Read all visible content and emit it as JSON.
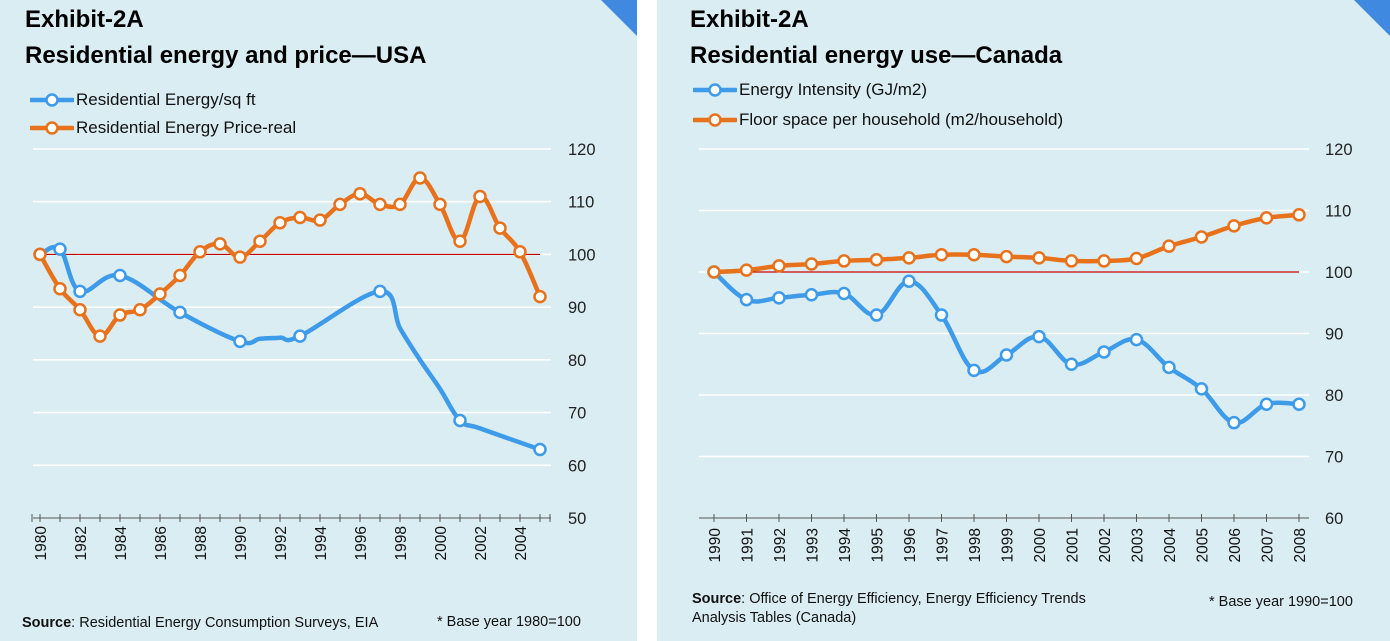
{
  "panels": [
    {
      "exhibit": "Exhibit-2A",
      "title": "Residential energy and price—USA",
      "legend": [
        "Residential Energy/sq ft",
        "Residential Energy Price-real"
      ],
      "source_label": "Source",
      "source_text": ": Residential Energy Consumption Surveys, EIA",
      "note": "* Base year 1980=100"
    },
    {
      "exhibit": "Exhibit-2A",
      "title": "Residential energy use—Canada",
      "legend": [
        "Energy Intensity (GJ/m2)",
        "Floor space per household (m2/household)"
      ],
      "source_label": "Source",
      "source_text": ": Office of Energy Efficiency, Energy Efficiency Trends Analysis Tables (Canada)",
      "note": "* Base year 1990=100"
    }
  ],
  "colors": {
    "blue": "#3d9be9",
    "orange": "#e8721c",
    "baseline": "#c00000",
    "grid": "#ffffff",
    "background": "#daedf3",
    "corner": "#3f8ae0"
  },
  "chart_data": [
    {
      "type": "line",
      "title": "Residential energy and price—USA",
      "ylim": [
        50,
        120
      ],
      "yticks": [
        50,
        60,
        70,
        80,
        90,
        100,
        110,
        120
      ],
      "x_tick_labels": [
        "1980",
        "1982",
        "1984",
        "1986",
        "1988",
        "1990",
        "1992",
        "1994",
        "1996",
        "1998",
        "2000",
        "2002",
        "2004"
      ],
      "baseline": 100,
      "grid": true,
      "legend_position": "top-left",
      "series": [
        {
          "name": "Residential Energy/sq ft",
          "color": "#3d9be9",
          "points": [
            [
              1980,
              100
            ],
            [
              1981,
              101
            ],
            [
              1982,
              93
            ],
            [
              1984,
              96
            ],
            [
              1987,
              89
            ],
            [
              1990,
              83.5
            ],
            [
              1993,
              84.5
            ],
            [
              1997,
              93
            ],
            [
              2001,
              68.5
            ],
            [
              2005,
              63
            ]
          ],
          "plain": [
            [
              1991,
              84
            ],
            [
              1992,
              84.2
            ],
            [
              1998,
              86
            ],
            [
              1999,
              80
            ],
            [
              2000,
              74.5
            ],
            [
              2002,
              67
            ]
          ]
        },
        {
          "name": "Residential Energy Price-real",
          "color": "#e8721c",
          "points": [
            [
              1980,
              100
            ],
            [
              1981,
              93.5
            ],
            [
              1982,
              89.5
            ],
            [
              1983,
              84.5
            ],
            [
              1984,
              88.5
            ],
            [
              1985,
              89.5
            ],
            [
              1986,
              92.5
            ],
            [
              1987,
              96
            ],
            [
              1988,
              100.5
            ],
            [
              1989,
              102
            ],
            [
              1990,
              99.5
            ],
            [
              1991,
              102.5
            ],
            [
              1992,
              106
            ],
            [
              1993,
              107
            ],
            [
              1994,
              106.5
            ],
            [
              1995,
              109.5
            ],
            [
              1996,
              111.5
            ],
            [
              1997,
              109.5
            ],
            [
              1998,
              109.5
            ],
            [
              1999,
              114.5
            ],
            [
              2000,
              109.5
            ],
            [
              2001,
              102.5
            ],
            [
              2002,
              111
            ],
            [
              2003,
              105
            ],
            [
              2004,
              100.5
            ],
            [
              2005,
              92
            ]
          ]
        }
      ]
    },
    {
      "type": "line",
      "title": "Residential energy use—Canada",
      "ylim": [
        60,
        120
      ],
      "yticks": [
        60,
        70,
        80,
        90,
        100,
        110,
        120
      ],
      "x_tick_labels": [
        "1990",
        "1991",
        "1992",
        "1993",
        "1994",
        "1995",
        "1996",
        "1997",
        "1998",
        "1999",
        "2000",
        "2001",
        "2002",
        "2003",
        "2004",
        "2005",
        "2006",
        "2007",
        "2008"
      ],
      "baseline": 100,
      "grid": true,
      "legend_position": "top-left",
      "series": [
        {
          "name": "Energy Intensity (GJ/m2)",
          "color": "#3d9be9",
          "points": [
            [
              1990,
              100
            ],
            [
              1991,
              95.5
            ],
            [
              1992,
              95.8
            ],
            [
              1993,
              96.3
            ],
            [
              1994,
              96.5
            ],
            [
              1995,
              93
            ],
            [
              1996,
              98.5
            ],
            [
              1997,
              93
            ],
            [
              1998,
              84
            ],
            [
              1999,
              86.5
            ],
            [
              2000,
              89.5
            ],
            [
              2001,
              85
            ],
            [
              2002,
              87
            ],
            [
              2003,
              89
            ],
            [
              2004,
              84.5
            ],
            [
              2005,
              81
            ],
            [
              2006,
              75.5
            ],
            [
              2007,
              78.5
            ],
            [
              2008,
              78.5
            ]
          ]
        },
        {
          "name": "Floor space per household (m2/household)",
          "color": "#e8721c",
          "points": [
            [
              1990,
              100
            ],
            [
              1991,
              100.3
            ],
            [
              1992,
              101
            ],
            [
              1993,
              101.3
            ],
            [
              1994,
              101.8
            ],
            [
              1995,
              102
            ],
            [
              1996,
              102.3
            ],
            [
              1997,
              102.8
            ],
            [
              1998,
              102.8
            ],
            [
              1999,
              102.5
            ],
            [
              2000,
              102.3
            ],
            [
              2001,
              101.8
            ],
            [
              2002,
              101.8
            ],
            [
              2003,
              102.2
            ],
            [
              2004,
              104.2
            ],
            [
              2005,
              105.7
            ],
            [
              2006,
              107.5
            ],
            [
              2007,
              108.8
            ],
            [
              2008,
              109.3
            ]
          ]
        }
      ]
    }
  ]
}
